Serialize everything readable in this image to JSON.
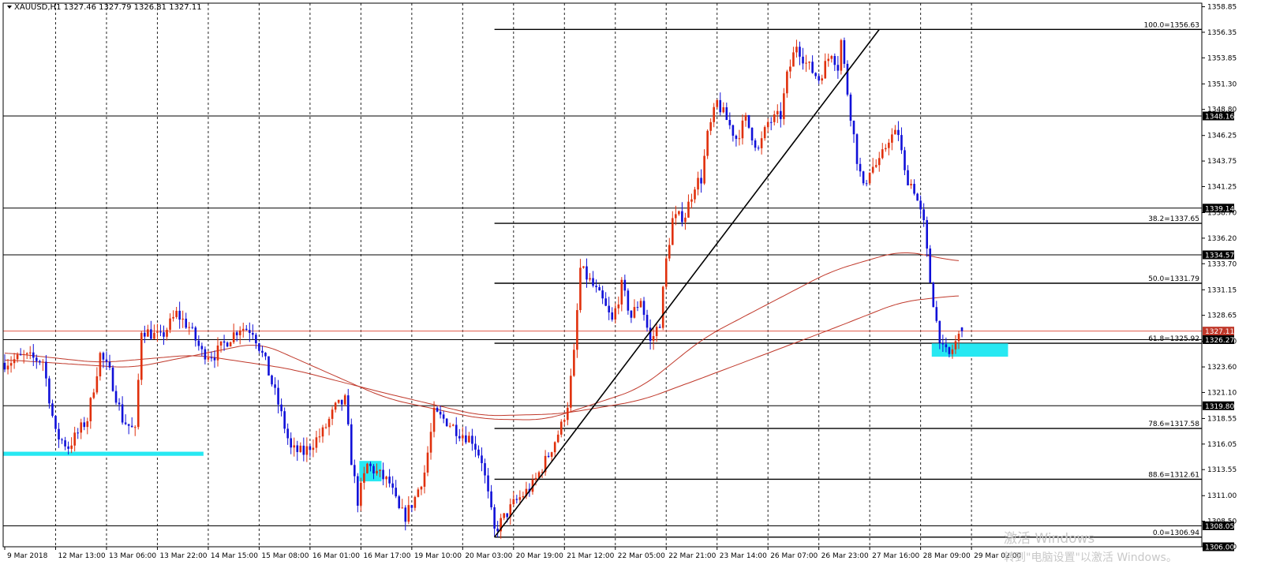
{
  "header": {
    "symbol_line": "XAUUSD,H1  1327.46  1327.79  1326.81  1327.11"
  },
  "watermark": {
    "line1": "激活 Windows",
    "line2": "转到\"电脑设置\"以激活 Windows。"
  },
  "chart_data": {
    "type": "candlestick",
    "symbol": "XAUUSD",
    "timeframe": "H1",
    "ohlc_current": {
      "open": 1327.46,
      "high": 1327.79,
      "low": 1326.81,
      "close": 1327.11
    },
    "ylim": [
      1306.0,
      1359.2
    ],
    "grid": true,
    "y_ticks": [
      "1358.85",
      "1356.35",
      "1353.85",
      "1351.30",
      "1348.80",
      "1346.25",
      "1343.75",
      "1341.25",
      "1338.70",
      "1336.20",
      "1333.70",
      "1331.15",
      "1328.65",
      "1326.10",
      "1323.60",
      "1321.10",
      "1318.55",
      "1316.05",
      "1313.55",
      "1311.00",
      "1308.50",
      "1306.00"
    ],
    "x_ticks": [
      "9 Mar 2018",
      "12 Mar 13:00",
      "13 Mar 06:00",
      "13 Mar 22:00",
      "14 Mar 15:00",
      "15 Mar 08:00",
      "16 Mar 01:00",
      "16 Mar 17:00",
      "19 Mar 10:00",
      "20 Mar 03:00",
      "20 Mar 19:00",
      "21 Mar 12:00",
      "22 Mar 05:00",
      "22 Mar 21:00",
      "23 Mar 14:00",
      "26 Mar 07:00",
      "26 Mar 23:00",
      "27 Mar 16:00",
      "28 Mar 09:00",
      "29 Mar 02:00"
    ],
    "price_labels": [
      {
        "text": "1348.16",
        "value": 1348.16
      },
      {
        "text": "1339.14",
        "value": 1339.14
      },
      {
        "text": "1334.57",
        "value": 1334.57
      },
      {
        "text": "1327.11",
        "value": 1327.11,
        "current": true
      },
      {
        "text": "1326.27",
        "value": 1326.27
      },
      {
        "text": "1319.80",
        "value": 1319.8
      },
      {
        "text": "1308.05",
        "value": 1308.05
      },
      {
        "text": "1306.00",
        "value": 1306.0
      }
    ],
    "horizontal_lines": [
      1348.16,
      1339.14,
      1334.57,
      1326.27,
      1319.8,
      1308.05
    ],
    "current_price_line": 1327.11,
    "fibonacci": [
      {
        "text": "100.0=1356.63",
        "value": 1356.63
      },
      {
        "text": "38.2=1337.65",
        "value": 1337.65
      },
      {
        "text": "50.0=1331.79",
        "value": 1331.79
      },
      {
        "text": "61.8=1325.92",
        "value": 1325.92
      },
      {
        "text": "78.6=1317.58",
        "value": 1317.58
      },
      {
        "text": "88.6=1312.61",
        "value": 1312.61
      },
      {
        "text": "0.0=1306.94",
        "value": 1306.94
      }
    ],
    "fib_start_bar": 154,
    "trendline": {
      "from": {
        "bar": 154,
        "price": 1306.94
      },
      "to": {
        "bar": 275,
        "price": 1356.63
      }
    },
    "zones": [
      {
        "bar_from": 0,
        "bar_to": 62,
        "price_low": 1314.9,
        "price_high": 1315.3
      },
      {
        "bar_from": 112,
        "bar_to": 118,
        "price_low": 1312.4,
        "price_high": 1314.4
      },
      {
        "bar_from": 292,
        "bar_to": 315,
        "price_low": 1324.6,
        "price_high": 1325.9
      }
    ],
    "anchors": [
      [
        0,
        1324.0
      ],
      [
        6,
        1324.6
      ],
      [
        12,
        1324.2
      ],
      [
        16,
        1317.0
      ],
      [
        20,
        1315.8
      ],
      [
        26,
        1318.5
      ],
      [
        30,
        1324.8
      ],
      [
        33,
        1323.0
      ],
      [
        37,
        1318.5
      ],
      [
        41,
        1317.2
      ],
      [
        43,
        1327.3
      ],
      [
        49,
        1326.4
      ],
      [
        54,
        1328.8
      ],
      [
        58,
        1327.5
      ],
      [
        62,
        1325.0
      ],
      [
        66,
        1324.8
      ],
      [
        70,
        1326.2
      ],
      [
        74,
        1327.5
      ],
      [
        78,
        1327.2
      ],
      [
        82,
        1324.0
      ],
      [
        86,
        1320.0
      ],
      [
        90,
        1315.5
      ],
      [
        94,
        1315.2
      ],
      [
        97,
        1316.2
      ],
      [
        100,
        1317.2
      ],
      [
        104,
        1319.6
      ],
      [
        107,
        1320.3
      ],
      [
        109,
        1314.5
      ],
      [
        111,
        1310.5
      ],
      [
        114,
        1314.0
      ],
      [
        118,
        1313.0
      ],
      [
        121,
        1312.2
      ],
      [
        124,
        1309.5
      ],
      [
        126,
        1309.0
      ],
      [
        129,
        1310.8
      ],
      [
        132,
        1313.3
      ],
      [
        135,
        1319.0
      ],
      [
        139,
        1318.3
      ],
      [
        143,
        1317.2
      ],
      [
        147,
        1316.5
      ],
      [
        150,
        1314.5
      ],
      [
        154,
        1307.5
      ],
      [
        160,
        1310.2
      ],
      [
        166,
        1312.0
      ],
      [
        171,
        1315.0
      ],
      [
        175,
        1317.8
      ],
      [
        177,
        1320.0
      ],
      [
        179,
        1324.8
      ],
      [
        181,
        1333.2
      ],
      [
        184,
        1332.0
      ],
      [
        188,
        1330.0
      ],
      [
        191,
        1328.0
      ],
      [
        194,
        1331.5
      ],
      [
        197,
        1328.5
      ],
      [
        200,
        1330.3
      ],
      [
        203,
        1326.0
      ],
      [
        206,
        1328.0
      ],
      [
        208,
        1334.0
      ],
      [
        210,
        1338.0
      ],
      [
        214,
        1338.5
      ],
      [
        217,
        1341.5
      ],
      [
        219,
        1342.0
      ],
      [
        221,
        1346.2
      ],
      [
        224,
        1349.5
      ],
      [
        227,
        1347.8
      ],
      [
        230,
        1346.0
      ],
      [
        233,
        1347.8
      ],
      [
        237,
        1344.8
      ],
      [
        240,
        1347.5
      ],
      [
        244,
        1348.2
      ],
      [
        246,
        1352.0
      ],
      [
        249,
        1355.2
      ],
      [
        252,
        1353.3
      ],
      [
        256,
        1351.8
      ],
      [
        260,
        1354.5
      ],
      [
        262,
        1353.0
      ],
      [
        263,
        1355.5
      ],
      [
        265,
        1350.5
      ],
      [
        268,
        1344.0
      ],
      [
        270,
        1341.0
      ],
      [
        272,
        1343.0
      ],
      [
        275,
        1343.5
      ],
      [
        278,
        1346.0
      ],
      [
        281,
        1346.5
      ],
      [
        283,
        1342.5
      ],
      [
        286,
        1341.0
      ],
      [
        289,
        1337.5
      ],
      [
        291,
        1332.0
      ],
      [
        293,
        1328.0
      ],
      [
        295,
        1325.2
      ],
      [
        297,
        1324.7
      ],
      [
        299,
        1326.0
      ],
      [
        301,
        1327.1
      ]
    ],
    "ma_fast": [
      [
        0,
        1324.3
      ],
      [
        40,
        1323.5
      ],
      [
        80,
        1326.0
      ],
      [
        120,
        1320.5
      ],
      [
        150,
        1318.5
      ],
      [
        170,
        1318.4
      ],
      [
        200,
        1321.5
      ],
      [
        220,
        1326.5
      ],
      [
        260,
        1333.0
      ],
      [
        282,
        1335.0
      ],
      [
        300,
        1333.9
      ]
    ],
    "ma_slow": [
      [
        0,
        1325.0
      ],
      [
        30,
        1324.0
      ],
      [
        60,
        1324.8
      ],
      [
        90,
        1323.4
      ],
      [
        120,
        1321.0
      ],
      [
        150,
        1318.8
      ],
      [
        175,
        1319.0
      ],
      [
        200,
        1320.3
      ],
      [
        220,
        1322.6
      ],
      [
        260,
        1327.3
      ],
      [
        282,
        1330.0
      ],
      [
        300,
        1330.6
      ]
    ],
    "candle_colors": {
      "up": "#e0300c",
      "down": "#1010d8"
    },
    "ma_color": "#c0392b",
    "zone_color": "#27e8f2"
  }
}
